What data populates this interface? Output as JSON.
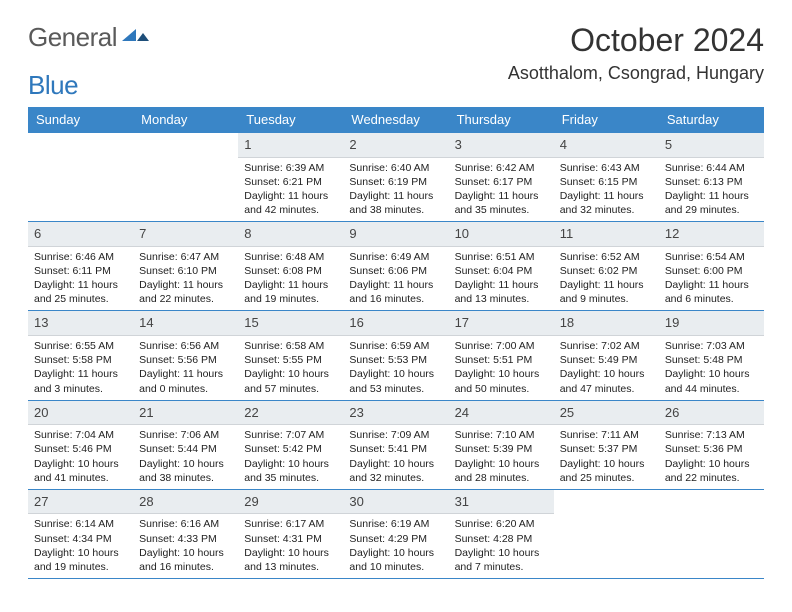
{
  "brand": {
    "word1": "General",
    "word2": "Blue"
  },
  "title": "October 2024",
  "location": "Asotthalom, Csongrad, Hungary",
  "colors": {
    "header_bg": "#3a86c8",
    "header_fg": "#ffffff",
    "daynum_bg": "#e9edf0",
    "rule": "#3a86c8",
    "logo_gray": "#5a5a5a",
    "logo_blue": "#2f78bc"
  },
  "day_headers": [
    "Sunday",
    "Monday",
    "Tuesday",
    "Wednesday",
    "Thursday",
    "Friday",
    "Saturday"
  ],
  "weeks": [
    [
      {
        "n": "",
        "sunrise": "",
        "sunset": "",
        "daylight": ""
      },
      {
        "n": "",
        "sunrise": "",
        "sunset": "",
        "daylight": ""
      },
      {
        "n": "1",
        "sunrise": "Sunrise: 6:39 AM",
        "sunset": "Sunset: 6:21 PM",
        "daylight": "Daylight: 11 hours and 42 minutes."
      },
      {
        "n": "2",
        "sunrise": "Sunrise: 6:40 AM",
        "sunset": "Sunset: 6:19 PM",
        "daylight": "Daylight: 11 hours and 38 minutes."
      },
      {
        "n": "3",
        "sunrise": "Sunrise: 6:42 AM",
        "sunset": "Sunset: 6:17 PM",
        "daylight": "Daylight: 11 hours and 35 minutes."
      },
      {
        "n": "4",
        "sunrise": "Sunrise: 6:43 AM",
        "sunset": "Sunset: 6:15 PM",
        "daylight": "Daylight: 11 hours and 32 minutes."
      },
      {
        "n": "5",
        "sunrise": "Sunrise: 6:44 AM",
        "sunset": "Sunset: 6:13 PM",
        "daylight": "Daylight: 11 hours and 29 minutes."
      }
    ],
    [
      {
        "n": "6",
        "sunrise": "Sunrise: 6:46 AM",
        "sunset": "Sunset: 6:11 PM",
        "daylight": "Daylight: 11 hours and 25 minutes."
      },
      {
        "n": "7",
        "sunrise": "Sunrise: 6:47 AM",
        "sunset": "Sunset: 6:10 PM",
        "daylight": "Daylight: 11 hours and 22 minutes."
      },
      {
        "n": "8",
        "sunrise": "Sunrise: 6:48 AM",
        "sunset": "Sunset: 6:08 PM",
        "daylight": "Daylight: 11 hours and 19 minutes."
      },
      {
        "n": "9",
        "sunrise": "Sunrise: 6:49 AM",
        "sunset": "Sunset: 6:06 PM",
        "daylight": "Daylight: 11 hours and 16 minutes."
      },
      {
        "n": "10",
        "sunrise": "Sunrise: 6:51 AM",
        "sunset": "Sunset: 6:04 PM",
        "daylight": "Daylight: 11 hours and 13 minutes."
      },
      {
        "n": "11",
        "sunrise": "Sunrise: 6:52 AM",
        "sunset": "Sunset: 6:02 PM",
        "daylight": "Daylight: 11 hours and 9 minutes."
      },
      {
        "n": "12",
        "sunrise": "Sunrise: 6:54 AM",
        "sunset": "Sunset: 6:00 PM",
        "daylight": "Daylight: 11 hours and 6 minutes."
      }
    ],
    [
      {
        "n": "13",
        "sunrise": "Sunrise: 6:55 AM",
        "sunset": "Sunset: 5:58 PM",
        "daylight": "Daylight: 11 hours and 3 minutes."
      },
      {
        "n": "14",
        "sunrise": "Sunrise: 6:56 AM",
        "sunset": "Sunset: 5:56 PM",
        "daylight": "Daylight: 11 hours and 0 minutes."
      },
      {
        "n": "15",
        "sunrise": "Sunrise: 6:58 AM",
        "sunset": "Sunset: 5:55 PM",
        "daylight": "Daylight: 10 hours and 57 minutes."
      },
      {
        "n": "16",
        "sunrise": "Sunrise: 6:59 AM",
        "sunset": "Sunset: 5:53 PM",
        "daylight": "Daylight: 10 hours and 53 minutes."
      },
      {
        "n": "17",
        "sunrise": "Sunrise: 7:00 AM",
        "sunset": "Sunset: 5:51 PM",
        "daylight": "Daylight: 10 hours and 50 minutes."
      },
      {
        "n": "18",
        "sunrise": "Sunrise: 7:02 AM",
        "sunset": "Sunset: 5:49 PM",
        "daylight": "Daylight: 10 hours and 47 minutes."
      },
      {
        "n": "19",
        "sunrise": "Sunrise: 7:03 AM",
        "sunset": "Sunset: 5:48 PM",
        "daylight": "Daylight: 10 hours and 44 minutes."
      }
    ],
    [
      {
        "n": "20",
        "sunrise": "Sunrise: 7:04 AM",
        "sunset": "Sunset: 5:46 PM",
        "daylight": "Daylight: 10 hours and 41 minutes."
      },
      {
        "n": "21",
        "sunrise": "Sunrise: 7:06 AM",
        "sunset": "Sunset: 5:44 PM",
        "daylight": "Daylight: 10 hours and 38 minutes."
      },
      {
        "n": "22",
        "sunrise": "Sunrise: 7:07 AM",
        "sunset": "Sunset: 5:42 PM",
        "daylight": "Daylight: 10 hours and 35 minutes."
      },
      {
        "n": "23",
        "sunrise": "Sunrise: 7:09 AM",
        "sunset": "Sunset: 5:41 PM",
        "daylight": "Daylight: 10 hours and 32 minutes."
      },
      {
        "n": "24",
        "sunrise": "Sunrise: 7:10 AM",
        "sunset": "Sunset: 5:39 PM",
        "daylight": "Daylight: 10 hours and 28 minutes."
      },
      {
        "n": "25",
        "sunrise": "Sunrise: 7:11 AM",
        "sunset": "Sunset: 5:37 PM",
        "daylight": "Daylight: 10 hours and 25 minutes."
      },
      {
        "n": "26",
        "sunrise": "Sunrise: 7:13 AM",
        "sunset": "Sunset: 5:36 PM",
        "daylight": "Daylight: 10 hours and 22 minutes."
      }
    ],
    [
      {
        "n": "27",
        "sunrise": "Sunrise: 6:14 AM",
        "sunset": "Sunset: 4:34 PM",
        "daylight": "Daylight: 10 hours and 19 minutes."
      },
      {
        "n": "28",
        "sunrise": "Sunrise: 6:16 AM",
        "sunset": "Sunset: 4:33 PM",
        "daylight": "Daylight: 10 hours and 16 minutes."
      },
      {
        "n": "29",
        "sunrise": "Sunrise: 6:17 AM",
        "sunset": "Sunset: 4:31 PM",
        "daylight": "Daylight: 10 hours and 13 minutes."
      },
      {
        "n": "30",
        "sunrise": "Sunrise: 6:19 AM",
        "sunset": "Sunset: 4:29 PM",
        "daylight": "Daylight: 10 hours and 10 minutes."
      },
      {
        "n": "31",
        "sunrise": "Sunrise: 6:20 AM",
        "sunset": "Sunset: 4:28 PM",
        "daylight": "Daylight: 10 hours and 7 minutes."
      },
      {
        "n": "",
        "sunrise": "",
        "sunset": "",
        "daylight": ""
      },
      {
        "n": "",
        "sunrise": "",
        "sunset": "",
        "daylight": ""
      }
    ]
  ]
}
